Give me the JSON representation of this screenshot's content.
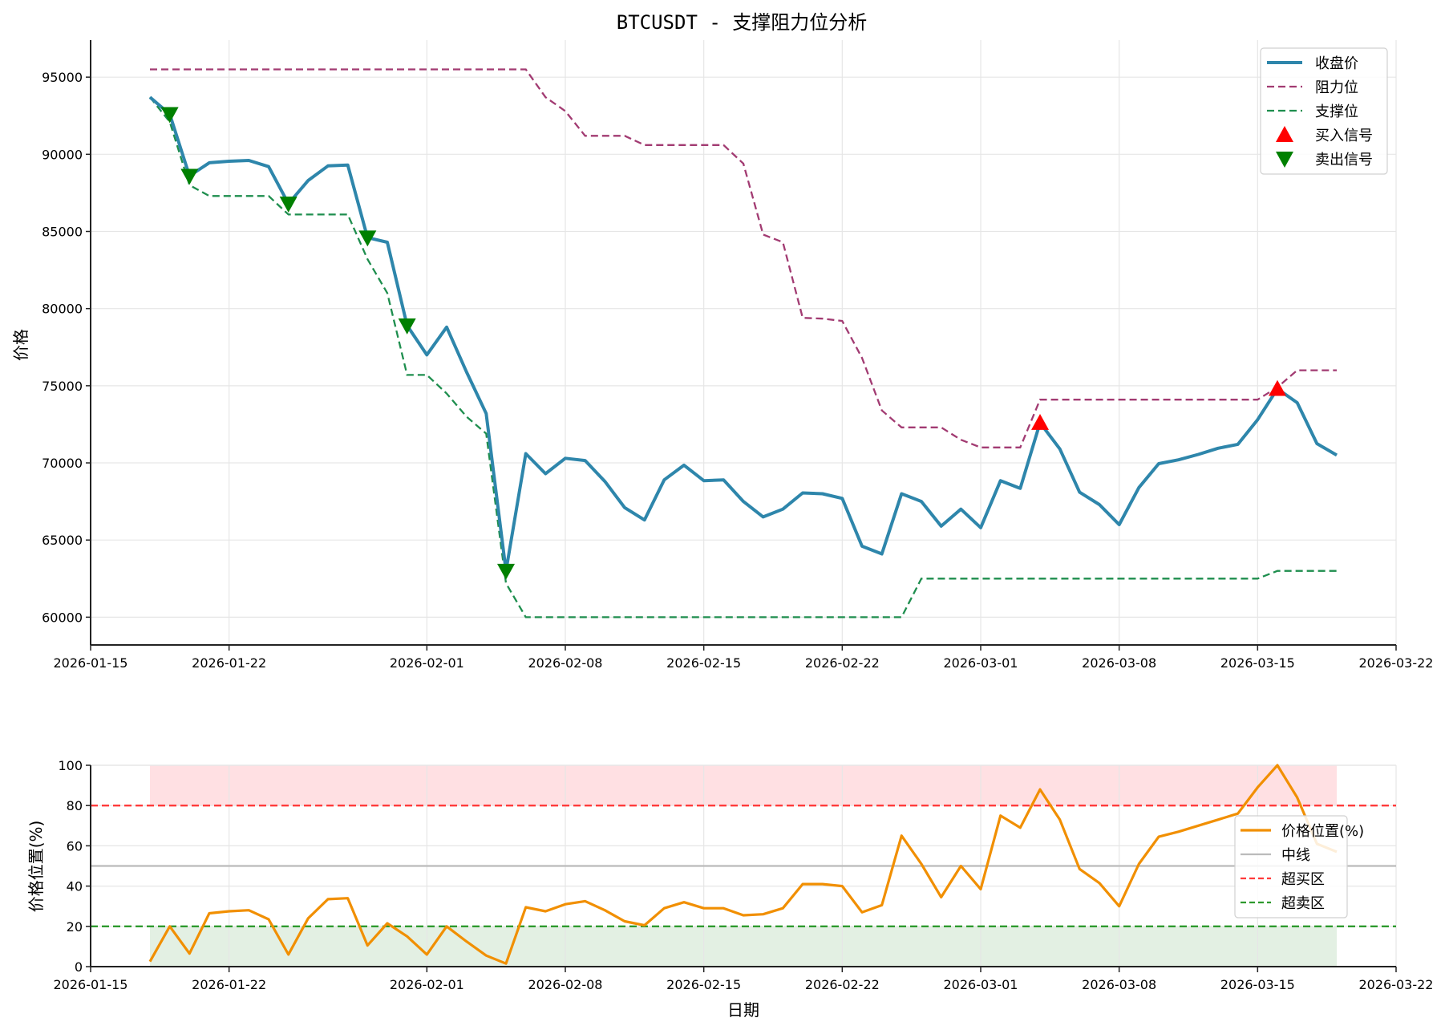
{
  "title": "BTCUSDT - 支撑阻力位分析",
  "colors": {
    "close": "#2E86AB",
    "resistance": "#A23B72",
    "support": "#1E8E4E",
    "buy_signal": "#FF0000",
    "sell_signal": "#008000",
    "position": "#F18F01",
    "midline": "#BBBBBB",
    "overbought": "#FF3B3B",
    "oversold": "#2E9A2E",
    "overbought_fill": "#FFE0E3",
    "oversold_fill": "#E3F0E3",
    "grid": "#E6E6E6",
    "axis": "#222222"
  },
  "chart_data": [
    {
      "type": "line",
      "title": "BTCUSDT - 支撑阻力位分析",
      "xlabel": "",
      "ylabel": "价格",
      "ylim": [
        58200,
        97400
      ],
      "xlim": [
        "2026-01-15",
        "2026-03-22"
      ],
      "yticks": [
        60000,
        65000,
        70000,
        75000,
        80000,
        85000,
        90000,
        95000
      ],
      "xticks": [
        "2026-01-15",
        "2026-01-22",
        "2026-02-01",
        "2026-02-08",
        "2026-02-15",
        "2026-02-22",
        "2026-03-01",
        "2026-03-08",
        "2026-03-15",
        "2026-03-22"
      ],
      "grid": true,
      "legend_position": "upper right",
      "x_start": "2026-01-18",
      "x_step_days": 1,
      "series": [
        {
          "name": "收盘价",
          "style": "solid",
          "values": [
            93700,
            92600,
            88600,
            89450,
            89550,
            89600,
            89200,
            86800,
            88300,
            89250,
            89300,
            84600,
            84300,
            78900,
            77000,
            78800,
            75900,
            73200,
            63000,
            70600,
            69300,
            70300,
            70150,
            68800,
            67100,
            66300,
            68900,
            69850,
            68850,
            68900,
            67500,
            66500,
            67000,
            68050,
            68000,
            67700,
            64600,
            64100,
            68000,
            67500,
            65900,
            67000,
            65800,
            68850,
            68350,
            72600,
            70900,
            68100,
            67300,
            66000,
            68400,
            69950,
            70200,
            70550,
            70950,
            71200,
            72800,
            74800,
            73900,
            71250,
            70500
          ]
        },
        {
          "name": "阻力位",
          "style": "dashed",
          "values": [
            95500,
            95500,
            95500,
            95500,
            95500,
            95500,
            95500,
            95500,
            95500,
            95500,
            95500,
            95500,
            95500,
            95500,
            95500,
            95500,
            95500,
            95500,
            95500,
            95500,
            93700,
            92800,
            91200,
            91200,
            91200,
            90600,
            90600,
            90600,
            90600,
            90600,
            89400,
            84800,
            84300,
            79400,
            79350,
            79200,
            76800,
            73400,
            72300,
            72300,
            72300,
            71500,
            71000,
            71000,
            71000,
            74100,
            74100,
            74100,
            74100,
            74100,
            74100,
            74100,
            74100,
            74100,
            74100,
            74100,
            74100,
            74900,
            76000,
            76000,
            76000
          ]
        },
        {
          "name": "支撑位",
          "style": "dashed",
          "values": [
            93700,
            92100,
            88000,
            87300,
            87300,
            87300,
            87300,
            86100,
            86100,
            86100,
            86100,
            83200,
            81000,
            75700,
            75700,
            74500,
            73000,
            71900,
            62200,
            60000,
            60000,
            60000,
            60000,
            60000,
            60000,
            60000,
            60000,
            60000,
            60000,
            60000,
            60000,
            60000,
            60000,
            60000,
            60000,
            60000,
            60000,
            60000,
            60000,
            62500,
            62500,
            62500,
            62500,
            62500,
            62500,
            62500,
            62500,
            62500,
            62500,
            62500,
            62500,
            62500,
            62500,
            62500,
            62500,
            62500,
            62500,
            63000,
            63000,
            63000,
            63000
          ]
        }
      ],
      "markers": [
        {
          "name": "买入信号",
          "shape": "triangle-up",
          "points": [
            {
              "date": "2026-03-04",
              "index": 45,
              "value": 72600
            },
            {
              "date": "2026-03-16",
              "index": 57,
              "value": 74800
            }
          ]
        },
        {
          "name": "卖出信号",
          "shape": "triangle-down",
          "points": [
            {
              "date": "2026-01-19",
              "index": 1,
              "value": 92600
            },
            {
              "date": "2026-01-20",
              "index": 2,
              "value": 88600
            },
            {
              "date": "2026-01-25",
              "index": 7,
              "value": 86800
            },
            {
              "date": "2026-01-29",
              "index": 11,
              "value": 84600
            },
            {
              "date": "2026-01-31",
              "index": 13,
              "value": 78900
            },
            {
              "date": "2026-02-05",
              "index": 18,
              "value": 63000
            }
          ]
        }
      ]
    },
    {
      "type": "line",
      "title": "",
      "xlabel": "日期",
      "ylabel": "价格位置(%)",
      "ylim": [
        0,
        100
      ],
      "xlim": [
        "2026-01-15",
        "2026-03-22"
      ],
      "yticks": [
        0,
        20,
        40,
        60,
        80,
        100
      ],
      "xticks": [
        "2026-01-15",
        "2026-01-22",
        "2026-02-01",
        "2026-02-08",
        "2026-02-15",
        "2026-02-22",
        "2026-03-01",
        "2026-03-08",
        "2026-03-15",
        "2026-03-22"
      ],
      "grid": true,
      "legend_position": "center right",
      "x_start": "2026-01-18",
      "x_step_days": 1,
      "series": [
        {
          "name": "价格位置(%)",
          "style": "solid",
          "values": [
            2.5,
            20,
            6.5,
            26.5,
            27.5,
            28,
            23.5,
            6,
            24,
            33.5,
            34,
            10.5,
            21.5,
            15,
            6,
            20,
            12.5,
            5.5,
            1.5,
            29.5,
            27.5,
            31,
            32.5,
            28,
            22.5,
            20.5,
            29,
            32,
            29,
            29,
            25.5,
            26,
            29,
            41,
            41,
            40,
            27,
            30.5,
            65,
            51,
            34.5,
            50,
            38.5,
            75,
            69,
            88,
            73,
            48.5,
            41.5,
            30,
            51,
            64.5,
            67,
            70,
            73,
            76,
            89,
            100,
            84,
            61,
            57
          ]
        }
      ],
      "reference_lines": [
        {
          "name": "中线",
          "value": 50,
          "style": "solid"
        },
        {
          "name": "超买区",
          "value": 80,
          "style": "dashed"
        },
        {
          "name": "超卖区",
          "value": 20,
          "style": "dashed"
        }
      ],
      "shaded_regions": [
        {
          "name": "overbought-zone",
          "from": 80,
          "to": 100
        },
        {
          "name": "oversold-zone",
          "from": 0,
          "to": 20
        }
      ]
    }
  ],
  "upper": {
    "ylabel": "价格",
    "legend": [
      "收盘价",
      "阻力位",
      "支撑位",
      "买入信号",
      "卖出信号"
    ]
  },
  "lower": {
    "ylabel": "价格位置(%)",
    "xlabel": "日期",
    "legend": [
      "价格位置(%)",
      "中线",
      "超买区",
      "超卖区"
    ]
  }
}
